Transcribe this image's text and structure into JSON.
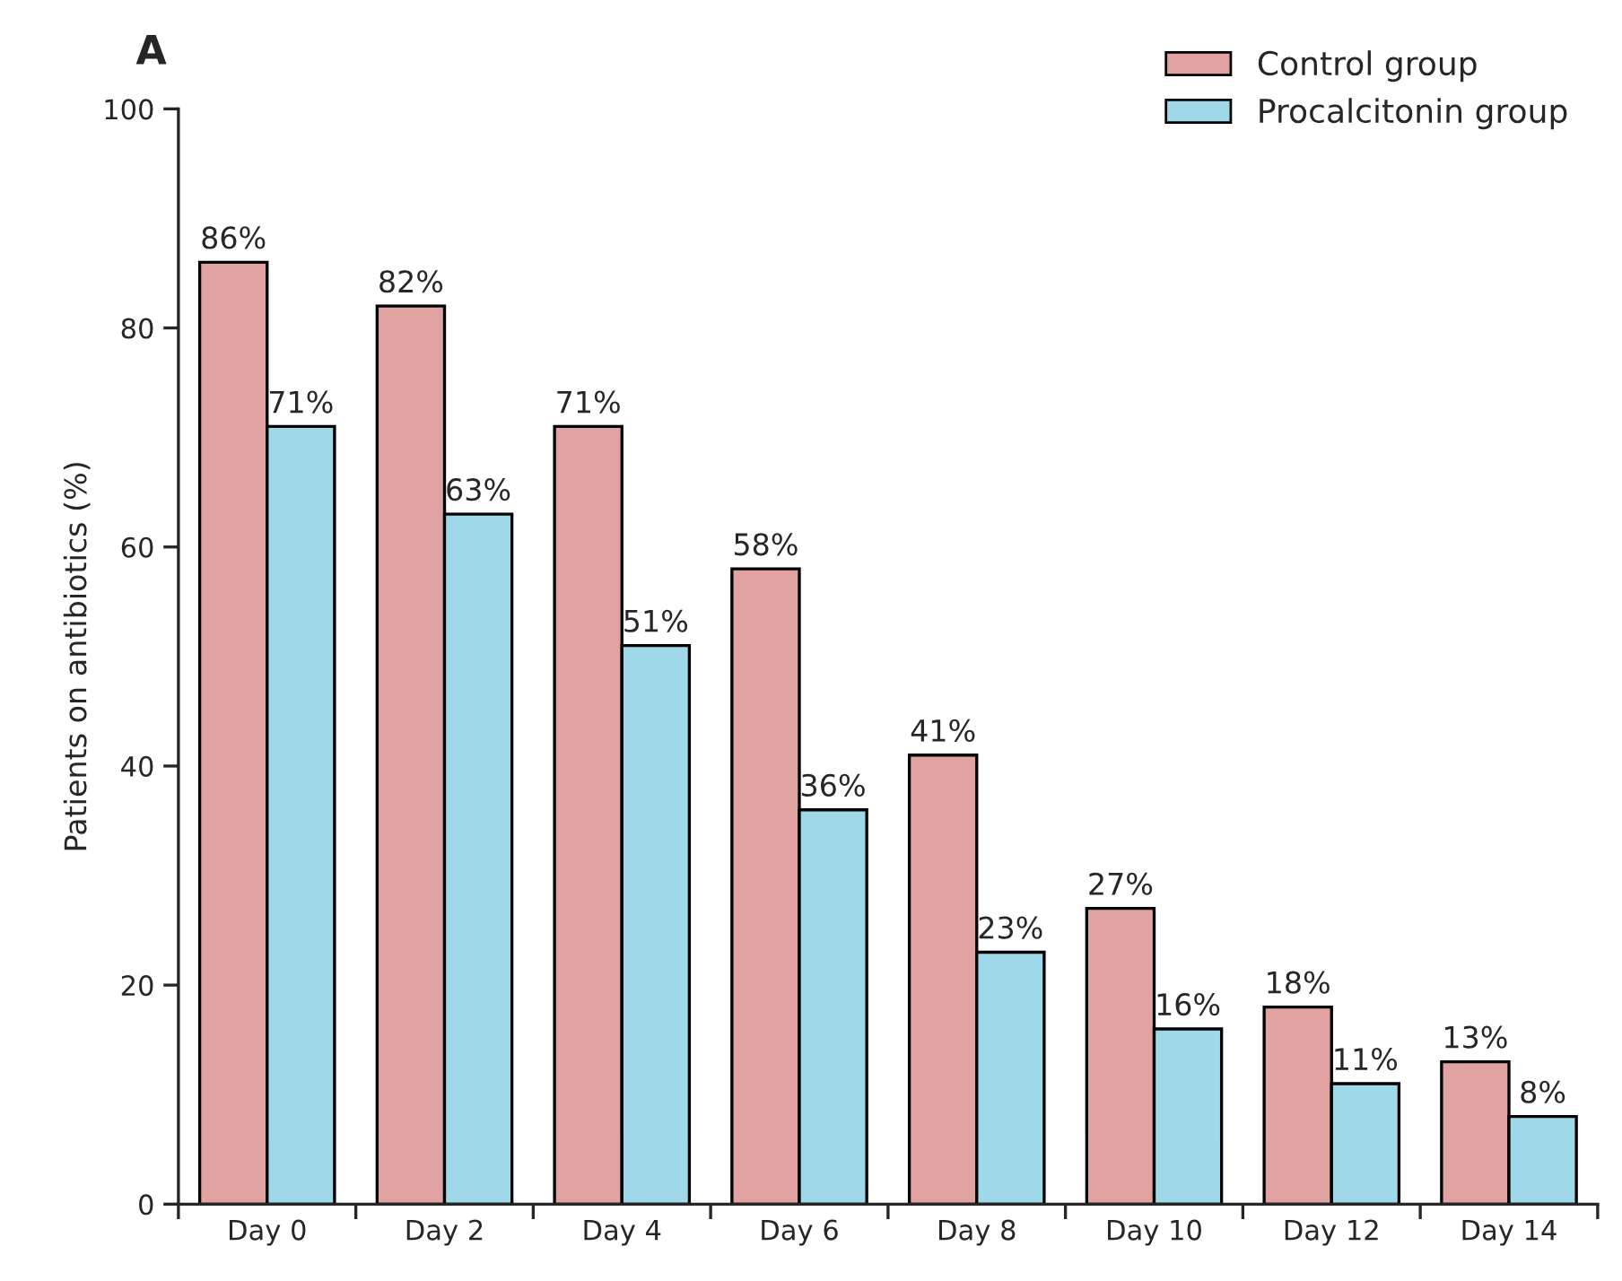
{
  "chart_data": {
    "type": "bar",
    "title": "A",
    "ylabel": "Patients on antibiotics (%)",
    "categories": [
      "Day 0",
      "Day 2",
      "Day 4",
      "Day 6",
      "Day 8",
      "Day 10",
      "Day 12",
      "Day 14"
    ],
    "series": [
      {
        "name": "Control group",
        "color": "#e0a3a1",
        "values": [
          86,
          82,
          71,
          58,
          41,
          27,
          18,
          13
        ],
        "value_labels": [
          "86%",
          "82%",
          "71%",
          "58%",
          "41%",
          "27%",
          "18%",
          "13%"
        ]
      },
      {
        "name": "Procalcitonin group",
        "color": "#9fd8e8",
        "values": [
          71,
          63,
          51,
          36,
          23,
          16,
          11,
          8
        ],
        "value_labels": [
          "71%",
          "63%",
          "51%",
          "36%",
          "23%",
          "16%",
          "11%",
          "8%"
        ]
      }
    ],
    "ylim": [
      0,
      100
    ],
    "yticks": [
      0,
      20,
      40,
      60,
      80,
      100
    ],
    "grid": false,
    "legend": "top right"
  }
}
